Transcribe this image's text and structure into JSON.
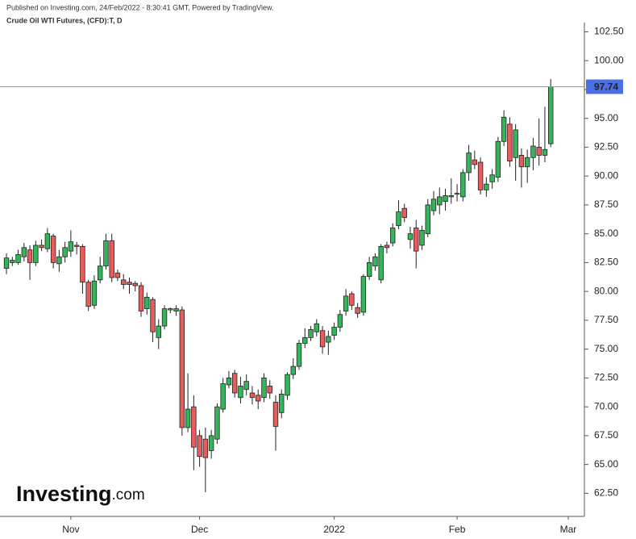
{
  "chart_data": {
    "type": "candlestick",
    "note": "Published on Investing.com, 24/Feb/2022 - 8:30:41 GMT, Powered by TradingView.",
    "title": "Crude Oil WTI Futures, (CFD):T, D",
    "logo": "Investing",
    "logo_suffix": ".com",
    "categories": [
      null,
      null,
      null,
      null,
      null,
      null,
      null,
      null,
      null,
      null,
      null,
      "Nov",
      null,
      null,
      null,
      null,
      null,
      null,
      null,
      null,
      null,
      null,
      null,
      null,
      null,
      null,
      null,
      null,
      null,
      null,
      null,
      null,
      null,
      "Dec",
      null,
      null,
      null,
      null,
      null,
      null,
      null,
      null,
      null,
      null,
      null,
      null,
      null,
      null,
      null,
      null,
      null,
      null,
      null,
      null,
      null,
      null,
      "2022",
      null,
      null,
      null,
      null,
      null,
      null,
      null,
      null,
      null,
      null,
      null,
      null,
      null,
      null,
      null,
      null,
      null,
      null,
      null,
      null,
      "Feb",
      null,
      null,
      null,
      null,
      null,
      null,
      null,
      null,
      null,
      null,
      null,
      null,
      null,
      null,
      null,
      null,
      null,
      null,
      "Mar"
    ],
    "open": [
      82.0,
      82.5,
      82.5,
      83.0,
      83.6,
      82.5,
      84.0,
      83.7,
      84.8,
      82.4,
      83.0,
      83.5,
      84.0,
      83.9,
      80.8,
      78.8,
      81.0,
      82.2,
      84.4,
      81.6,
      81.0,
      80.8,
      80.7,
      80.5,
      78.5,
      79.3,
      76.0,
      77.0,
      78.5,
      78.3,
      78.4,
      68.2,
      70.0,
      67.5,
      67.2,
      66.2,
      67.2,
      69.8,
      71.9,
      72.9,
      70.8,
      71.5,
      71.2,
      71.0,
      70.8,
      71.8,
      70.4,
      69.5,
      71.0,
      72.8,
      73.5,
      75.5,
      76.0,
      76.5,
      76.6,
      75.6,
      76.2,
      76.9,
      78.3,
      79.8,
      78.6,
      78.2,
      81.3,
      82.2,
      81.0,
      84.0,
      84.2,
      85.7,
      87.2,
      84.5,
      85.5,
      84.0,
      85.0,
      87.0,
      87.5,
      87.8,
      88.2,
      88.5,
      88.2,
      90.3,
      91.4,
      91.2,
      88.8,
      89.5,
      89.9,
      93.0,
      94.5,
      91.6,
      91.8,
      90.8,
      91.6,
      92.5,
      91.8,
      92.8,
      null,
      null,
      null
    ],
    "high": [
      83.3,
      83.0,
      83.6,
      84.2,
      84.0,
      84.4,
      84.5,
      85.5,
      85.0,
      83.6,
      84.3,
      85.3,
      84.3,
      84.1,
      81.0,
      81.4,
      83.0,
      85.0,
      85.0,
      81.9,
      81.5,
      81.2,
      80.9,
      80.8,
      79.9,
      79.5,
      77.6,
      78.8,
      78.6,
      78.8,
      78.7,
      72.9,
      71.0,
      68.0,
      68.2,
      68.0,
      70.3,
      72.5,
      73.1,
      73.2,
      72.6,
      72.8,
      71.8,
      71.5,
      72.9,
      72.3,
      71.0,
      71.5,
      73.0,
      74.2,
      75.8,
      76.8,
      77.0,
      77.6,
      77.0,
      76.6,
      77.3,
      78.4,
      80.2,
      80.0,
      79.0,
      81.5,
      83.0,
      83.3,
      84.1,
      84.3,
      85.9,
      87.9,
      87.6,
      85.6,
      86.2,
      85.7,
      88.0,
      88.7,
      89.0,
      88.9,
      89.8,
      89.3,
      90.6,
      92.7,
      92.2,
      91.6,
      89.9,
      90.6,
      93.4,
      95.7,
      95.1,
      94.5,
      92.4,
      92.3,
      93.3,
      95.0,
      96.0,
      98.4,
      null,
      null,
      null
    ],
    "low": [
      81.5,
      82.2,
      82.3,
      82.6,
      81.0,
      82.2,
      83.5,
      83.4,
      82.0,
      81.7,
      82.5,
      83.0,
      83.2,
      79.8,
      78.3,
      78.5,
      80.7,
      81.9,
      80.8,
      80.9,
      80.2,
      79.8,
      80.0,
      77.8,
      78.0,
      75.6,
      75.0,
      76.7,
      78.1,
      77.9,
      67.5,
      67.8,
      64.5,
      64.8,
      62.6,
      65.5,
      66.8,
      69.5,
      71.6,
      70.8,
      70.3,
      71.0,
      70.2,
      69.8,
      70.4,
      70.7,
      66.2,
      69.0,
      70.6,
      72.4,
      73.2,
      75.1,
      75.7,
      76.1,
      74.6,
      74.5,
      75.8,
      76.5,
      77.9,
      78.4,
      77.7,
      77.9,
      81.0,
      81.8,
      80.7,
      83.3,
      83.9,
      85.4,
      86.0,
      83.7,
      82.0,
      83.6,
      84.7,
      86.6,
      86.7,
      87.0,
      87.6,
      87.8,
      87.8,
      89.6,
      90.6,
      88.4,
      88.2,
      88.9,
      89.5,
      92.6,
      90.8,
      89.6,
      89.0,
      89.4,
      90.5,
      90.9,
      91.2,
      92.5,
      null,
      null,
      null
    ],
    "close": [
      82.9,
      82.7,
      83.2,
      83.8,
      82.5,
      84.0,
      83.8,
      85.0,
      82.5,
      83.0,
      83.8,
      84.3,
      83.9,
      80.8,
      78.7,
      80.9,
      82.2,
      84.4,
      81.2,
      81.2,
      80.6,
      80.6,
      80.5,
      78.3,
      79.5,
      76.5,
      77.0,
      78.5,
      78.4,
      78.5,
      68.2,
      69.8,
      66.5,
      65.7,
      65.6,
      67.5,
      70.0,
      72.0,
      72.5,
      71.2,
      71.8,
      72.2,
      70.8,
      70.5,
      72.5,
      71.2,
      68.3,
      71.1,
      72.8,
      73.5,
      75.5,
      76.0,
      76.7,
      77.2,
      75.2,
      76.1,
      76.9,
      78.0,
      79.6,
      78.8,
      78.1,
      81.3,
      82.5,
      83.0,
      83.9,
      83.8,
      85.5,
      86.9,
      86.4,
      85.0,
      83.5,
      85.3,
      87.5,
      88.0,
      88.2,
      88.3,
      88.3,
      88.5,
      90.3,
      92.0,
      91.0,
      88.8,
      89.3,
      90.1,
      93.0,
      95.1,
      91.3,
      94.0,
      90.8,
      91.6,
      92.6,
      91.8,
      92.3,
      97.74,
      null,
      null,
      null
    ],
    "up_color": "#34b55a",
    "down_color": "#e85c5c",
    "price_line_color": "#7e92e0",
    "price_label_color": "#4c6fe3",
    "ylim": [
      60.5,
      103.3
    ],
    "yticks": [
      {
        "value": 62.5,
        "label": "62.50"
      },
      {
        "value": 65,
        "label": "65.00"
      },
      {
        "value": 67.5,
        "label": "67.50"
      },
      {
        "value": 70,
        "label": "70.00"
      },
      {
        "value": 72.5,
        "label": "72.50"
      },
      {
        "value": 75,
        "label": "75.00"
      },
      {
        "value": 77.5,
        "label": "77.50"
      },
      {
        "value": 80,
        "label": "80.00"
      },
      {
        "value": 82.5,
        "label": "82.50"
      },
      {
        "value": 85,
        "label": "85.00"
      },
      {
        "value": 87.5,
        "label": "87.50"
      },
      {
        "value": 90,
        "label": "90.00"
      },
      {
        "value": 92.5,
        "label": "92.50"
      },
      {
        "value": 95,
        "label": "95.00"
      },
      {
        "value": 97.5,
        "label": "97.50"
      },
      {
        "value": 100,
        "label": "100.00"
      },
      {
        "value": 102.5,
        "label": "102.50"
      }
    ],
    "grid": false
  }
}
